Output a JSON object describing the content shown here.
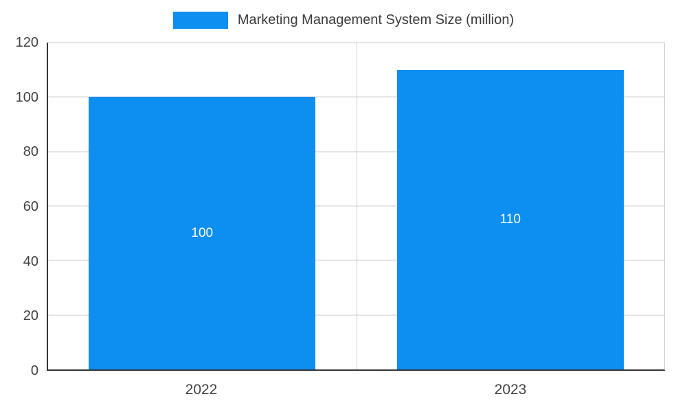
{
  "chart_data": {
    "type": "bar",
    "title": "Marketing Management System Size (million)",
    "categories": [
      "2022",
      "2023"
    ],
    "series": [
      {
        "name": "Marketing Management System Size (million)",
        "values": [
          100,
          110
        ]
      }
    ],
    "values": [
      100,
      110
    ],
    "bar_labels": [
      "100",
      "110"
    ],
    "xlabel": "",
    "ylabel": "",
    "ylim": [
      0,
      120
    ],
    "yticks": [
      0,
      20,
      40,
      60,
      80,
      100,
      120
    ],
    "grid": true,
    "legend_position": "top",
    "colors": {
      "bar": "#0d8ff2",
      "bar_label_text": "#ffffff",
      "grid": "#cccccc",
      "axis": "#333333",
      "tick_text": "#424242",
      "legend_text": "#3b3b3b",
      "background": "#ffffff"
    }
  }
}
